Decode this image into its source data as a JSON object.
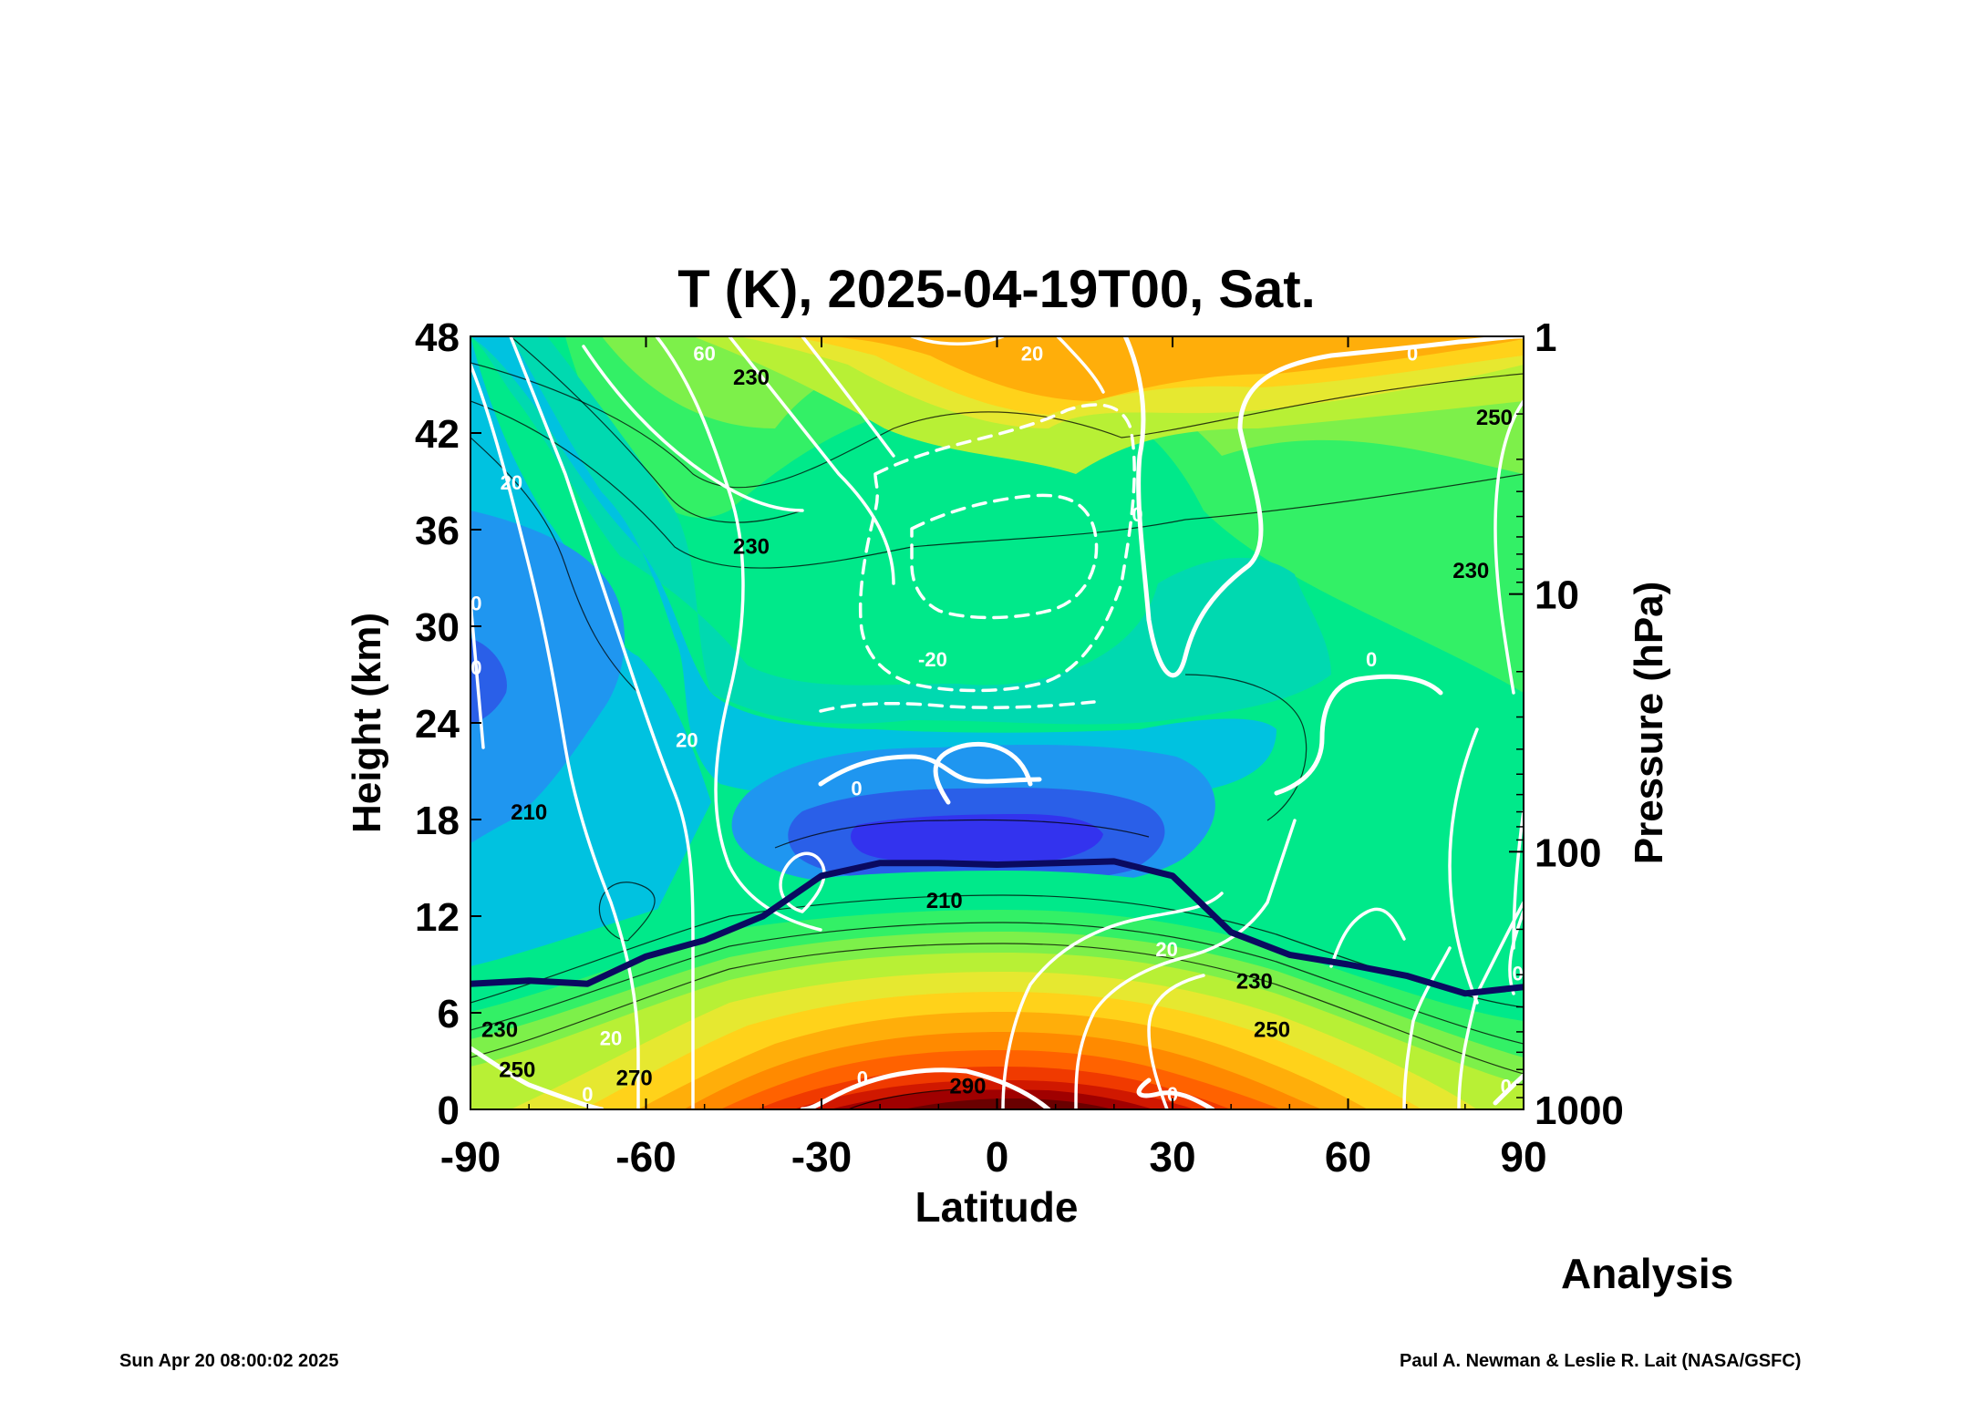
{
  "chart_data": {
    "type": "heatmap",
    "title": "T (K), 2025-04-19T00, Sat.",
    "xlabel": "Latitude",
    "ylabel": "Height (km)",
    "y2label": "Pressure (hPa)",
    "xlim": [
      -90,
      90
    ],
    "ylim": [
      0,
      48
    ],
    "x_ticks": [
      -90,
      -60,
      -30,
      0,
      30,
      60,
      90
    ],
    "y_ticks": [
      0,
      6,
      12,
      18,
      24,
      30,
      36,
      42,
      48
    ],
    "y2_ticks": [
      {
        "label": "1000",
        "height_km": 0
      },
      {
        "label": "100",
        "height_km": 16
      },
      {
        "label": "10",
        "height_km": 32
      },
      {
        "label": "1",
        "height_km": 48
      }
    ],
    "colorscale": [
      "#2a5fe8",
      "#1f96f0",
      "#00c2e0",
      "#00d9b0",
      "#00e98a",
      "#33f066",
      "#7df04a",
      "#b8f035",
      "#e6e830",
      "#ffd21a",
      "#ffae0a",
      "#ff8a00",
      "#ff6200",
      "#f03a00",
      "#d01800",
      "#a00000",
      "#6a0000"
    ],
    "temperature_labels": [
      {
        "text": "290",
        "lat": -5,
        "z": 1
      },
      {
        "text": "270",
        "lat": -62,
        "z": 1.5
      },
      {
        "text": "250",
        "lat": -82,
        "z": 2
      },
      {
        "text": "230",
        "lat": -85,
        "z": 4.5
      },
      {
        "text": "210",
        "lat": -80,
        "z": 18
      },
      {
        "text": "210",
        "lat": -9,
        "z": 12.5
      },
      {
        "text": "230",
        "lat": 44,
        "z": 7.5
      },
      {
        "text": "250",
        "lat": 47,
        "z": 4.5
      },
      {
        "text": "230",
        "lat": -42,
        "z": 34.5
      },
      {
        "text": "230",
        "lat": 81,
        "z": 33
      },
      {
        "text": "250",
        "lat": 85,
        "z": 42.5
      },
      {
        "text": "230",
        "lat": -42,
        "z": 45
      }
    ],
    "wind_labels": [
      {
        "text": "20",
        "lat": -83,
        "z": 38.5
      },
      {
        "text": "60",
        "lat": -50,
        "z": 46.5
      },
      {
        "text": "20",
        "lat": 6,
        "z": 46.5
      },
      {
        "text": "0",
        "lat": 71,
        "z": 46.5
      },
      {
        "text": "0",
        "lat": 24,
        "z": 36.5
      },
      {
        "text": "-20",
        "lat": -11,
        "z": 27.5
      },
      {
        "text": "20",
        "lat": -53,
        "z": 22.5
      },
      {
        "text": "0",
        "lat": -24,
        "z": 19.5
      },
      {
        "text": "0",
        "lat": 64,
        "z": 27.5
      },
      {
        "text": "20",
        "lat": 29,
        "z": 9.5
      },
      {
        "text": "20",
        "lat": -66,
        "z": 4
      },
      {
        "text": "0",
        "lat": -70,
        "z": 0.5
      },
      {
        "text": "0",
        "lat": -23,
        "z": 1.5
      },
      {
        "text": "0",
        "lat": 30,
        "z": 0.5
      },
      {
        "text": "0",
        "lat": 87,
        "z": 1
      },
      {
        "text": "0",
        "lat": -89,
        "z": 27
      },
      {
        "text": "0",
        "lat": -89,
        "z": 31
      },
      {
        "text": "0",
        "lat": 89,
        "z": 8
      }
    ],
    "tropopause": {
      "lat": [
        -90,
        -80,
        -70,
        -60,
        -50,
        -40,
        -30,
        -20,
        -10,
        0,
        10,
        20,
        30,
        40,
        50,
        60,
        70,
        80,
        90
      ],
      "height_km": [
        7.8,
        8.0,
        7.8,
        9.5,
        10.5,
        12,
        14.5,
        15.3,
        15.3,
        15.2,
        15.3,
        15.4,
        14.5,
        11,
        9.6,
        9.0,
        8.3,
        7.2,
        7.6
      ]
    }
  },
  "annotation": "Analysis",
  "footer_left": "Sun Apr 20 08:00:02 2025",
  "footer_right": "Paul A. Newman & Leslie R. Lait (NASA/GSFC)"
}
